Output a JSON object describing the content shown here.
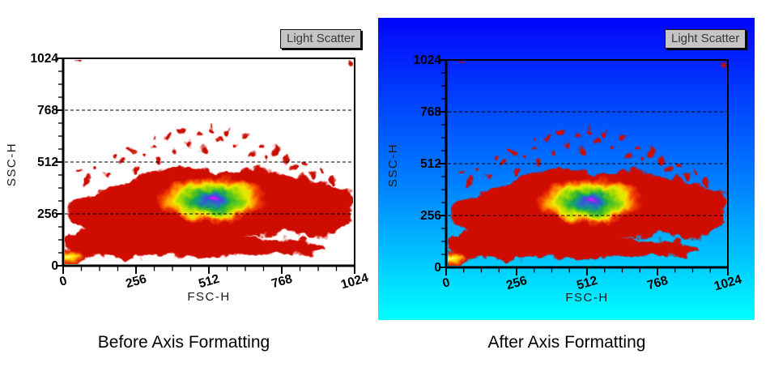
{
  "figure": {
    "description": "Two flow cytometry light-scatter density plots comparing axis formatting",
    "page_background": "#FFFFFF"
  },
  "chart_data": [
    {
      "type": "heatmap",
      "subtype": "flow-cytometry-density",
      "title": "Light Scatter",
      "caption": "Before Axis Formatting",
      "xlabel": "FSC-H",
      "ylabel": "SSC-H",
      "xlim": [
        0,
        1024
      ],
      "ylim": [
        0,
        1024
      ],
      "x_ticks": [
        0,
        256,
        512,
        768,
        1024
      ],
      "y_ticks": [
        0,
        256,
        512,
        768,
        1024
      ],
      "x_tick_labels": [
        "0",
        "256",
        "512",
        "768",
        "1024"
      ],
      "y_tick_labels": [
        "1024",
        "768",
        "512",
        "256",
        "0"
      ],
      "x_tick_label_rotation_deg": -16,
      "minor_ticks_per_major": 3,
      "gridlines": {
        "y_values": [
          256,
          512,
          768
        ],
        "style": "dashed",
        "color": "#000000"
      },
      "plot_area_background": "#FFFFFF",
      "panel_background": {
        "type": "solid",
        "color": "#FFFFFF"
      },
      "population": {
        "name": "light-scatter cluster",
        "peak": {
          "FSC-H": 520,
          "SSC-H": 320
        },
        "approx_extent": {
          "FSC-H": [
            0,
            980
          ],
          "SSC-H": [
            0,
            640
          ]
        },
        "origin_hotspot": {
          "FSC-H": 15,
          "SSC-H": 45
        },
        "density_colormap_low_to_high": [
          "#CE0700",
          "#FF9D00",
          "#F2EA00",
          "#55C71E",
          "#11948C",
          "#3A4FD8",
          "#FF00FF"
        ]
      }
    },
    {
      "type": "heatmap",
      "subtype": "flow-cytometry-density",
      "title": "Light Scatter",
      "caption": "After Axis Formatting",
      "xlabel": "FSC-H",
      "ylabel": "SSC-H",
      "xlim": [
        0,
        1024
      ],
      "ylim": [
        0,
        1024
      ],
      "x_ticks": [
        0,
        256,
        512,
        768,
        1024
      ],
      "y_ticks": [
        0,
        256,
        512,
        768,
        1024
      ],
      "x_tick_labels": [
        "0",
        "256",
        "512",
        "768",
        "1024"
      ],
      "y_tick_labels": [
        "1024",
        "768",
        "512",
        "256",
        "0"
      ],
      "x_tick_label_rotation_deg": -16,
      "minor_ticks_per_major": 3,
      "gridlines": {
        "y_values": [
          256,
          512,
          768
        ],
        "style": "dashed",
        "color": "#000000"
      },
      "plot_area_background": "transparent",
      "panel_background": {
        "type": "linear-gradient",
        "direction": "top-to-bottom",
        "from": "#0204FA",
        "to": "#00FFFF"
      },
      "population": {
        "name": "light-scatter cluster",
        "peak": {
          "FSC-H": 520,
          "SSC-H": 320
        },
        "approx_extent": {
          "FSC-H": [
            0,
            980
          ],
          "SSC-H": [
            0,
            640
          ]
        },
        "origin_hotspot": {
          "FSC-H": 15,
          "SSC-H": 45
        },
        "density_colormap_low_to_high": [
          "#CE0700",
          "#FF9D00",
          "#F2EA00",
          "#55C71E",
          "#11948C",
          "#3A4FD8",
          "#FF00FF"
        ]
      }
    }
  ]
}
